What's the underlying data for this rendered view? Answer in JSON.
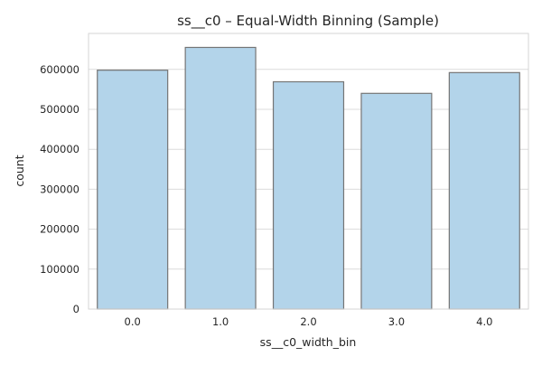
{
  "chart_data": {
    "type": "bar",
    "title": "ss__c0 – Equal-Width Binning (Sample)",
    "xlabel": "ss__c0_width_bin",
    "ylabel": "count",
    "categories": [
      "0.0",
      "1.0",
      "2.0",
      "3.0",
      "4.0"
    ],
    "values": [
      598000,
      655000,
      569000,
      540000,
      592000
    ],
    "ylim": [
      0,
      690000
    ],
    "yticks": [
      0,
      100000,
      200000,
      300000,
      400000,
      500000,
      600000
    ],
    "ytick_labels": [
      "0",
      "100000",
      "200000",
      "300000",
      "400000",
      "500000",
      "600000"
    ],
    "grid": "horizontal",
    "bar_color": "#b3d4ea",
    "bar_edge_color": "#757575",
    "grid_color": "#dcdcdc",
    "axes_edge_color": "#d4d4d4"
  }
}
